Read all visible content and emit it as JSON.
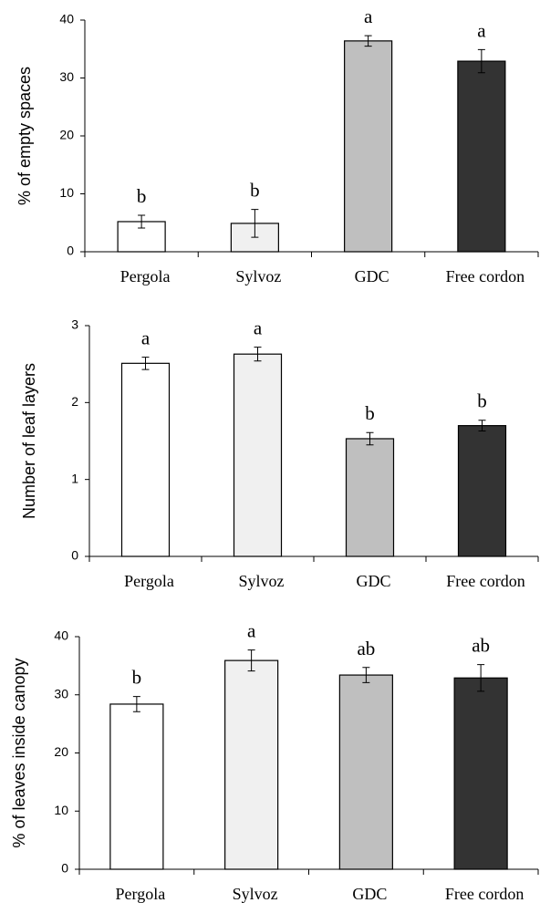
{
  "chart_data": [
    {
      "type": "bar",
      "ylabel": "% of empty spaces",
      "categories": [
        "Pergola",
        "Sylvoz",
        "GDC",
        "Free cordon"
      ],
      "values": [
        5.2,
        4.9,
        36.4,
        32.9
      ],
      "errors": [
        1.1,
        2.4,
        0.9,
        2.0
      ],
      "colors": [
        "#ffffff",
        "#f0f0f0",
        "#bfbfbf",
        "#333333"
      ],
      "annotations": [
        "b",
        "b",
        "a",
        "a"
      ],
      "ylim": [
        0,
        40
      ],
      "yticks": [
        0,
        10,
        20,
        30,
        40
      ]
    },
    {
      "type": "bar",
      "ylabel": "Number of leaf layers",
      "categories": [
        "Pergola",
        "Sylvoz",
        "GDC",
        "Free cordon"
      ],
      "values": [
        2.51,
        2.63,
        1.53,
        1.7
      ],
      "errors": [
        0.08,
        0.09,
        0.08,
        0.07
      ],
      "colors": [
        "#ffffff",
        "#f0f0f0",
        "#bfbfbf",
        "#333333"
      ],
      "annotations": [
        "a",
        "a",
        "b",
        "b"
      ],
      "ylim": [
        0,
        3
      ],
      "yticks": [
        0,
        1,
        2,
        3
      ]
    },
    {
      "type": "bar",
      "ylabel": "% of leaves inside canopy",
      "categories": [
        "Pergola",
        "Sylvoz",
        "GDC",
        "Free cordon"
      ],
      "values": [
        28.4,
        35.9,
        33.4,
        32.9
      ],
      "errors": [
        1.3,
        1.8,
        1.3,
        2.3
      ],
      "colors": [
        "#ffffff",
        "#f0f0f0",
        "#bfbfbf",
        "#333333"
      ],
      "annotations": [
        "b",
        "a",
        "ab",
        "ab"
      ],
      "ylim": [
        0,
        40
      ],
      "yticks": [
        0,
        10,
        20,
        30,
        40
      ]
    }
  ]
}
